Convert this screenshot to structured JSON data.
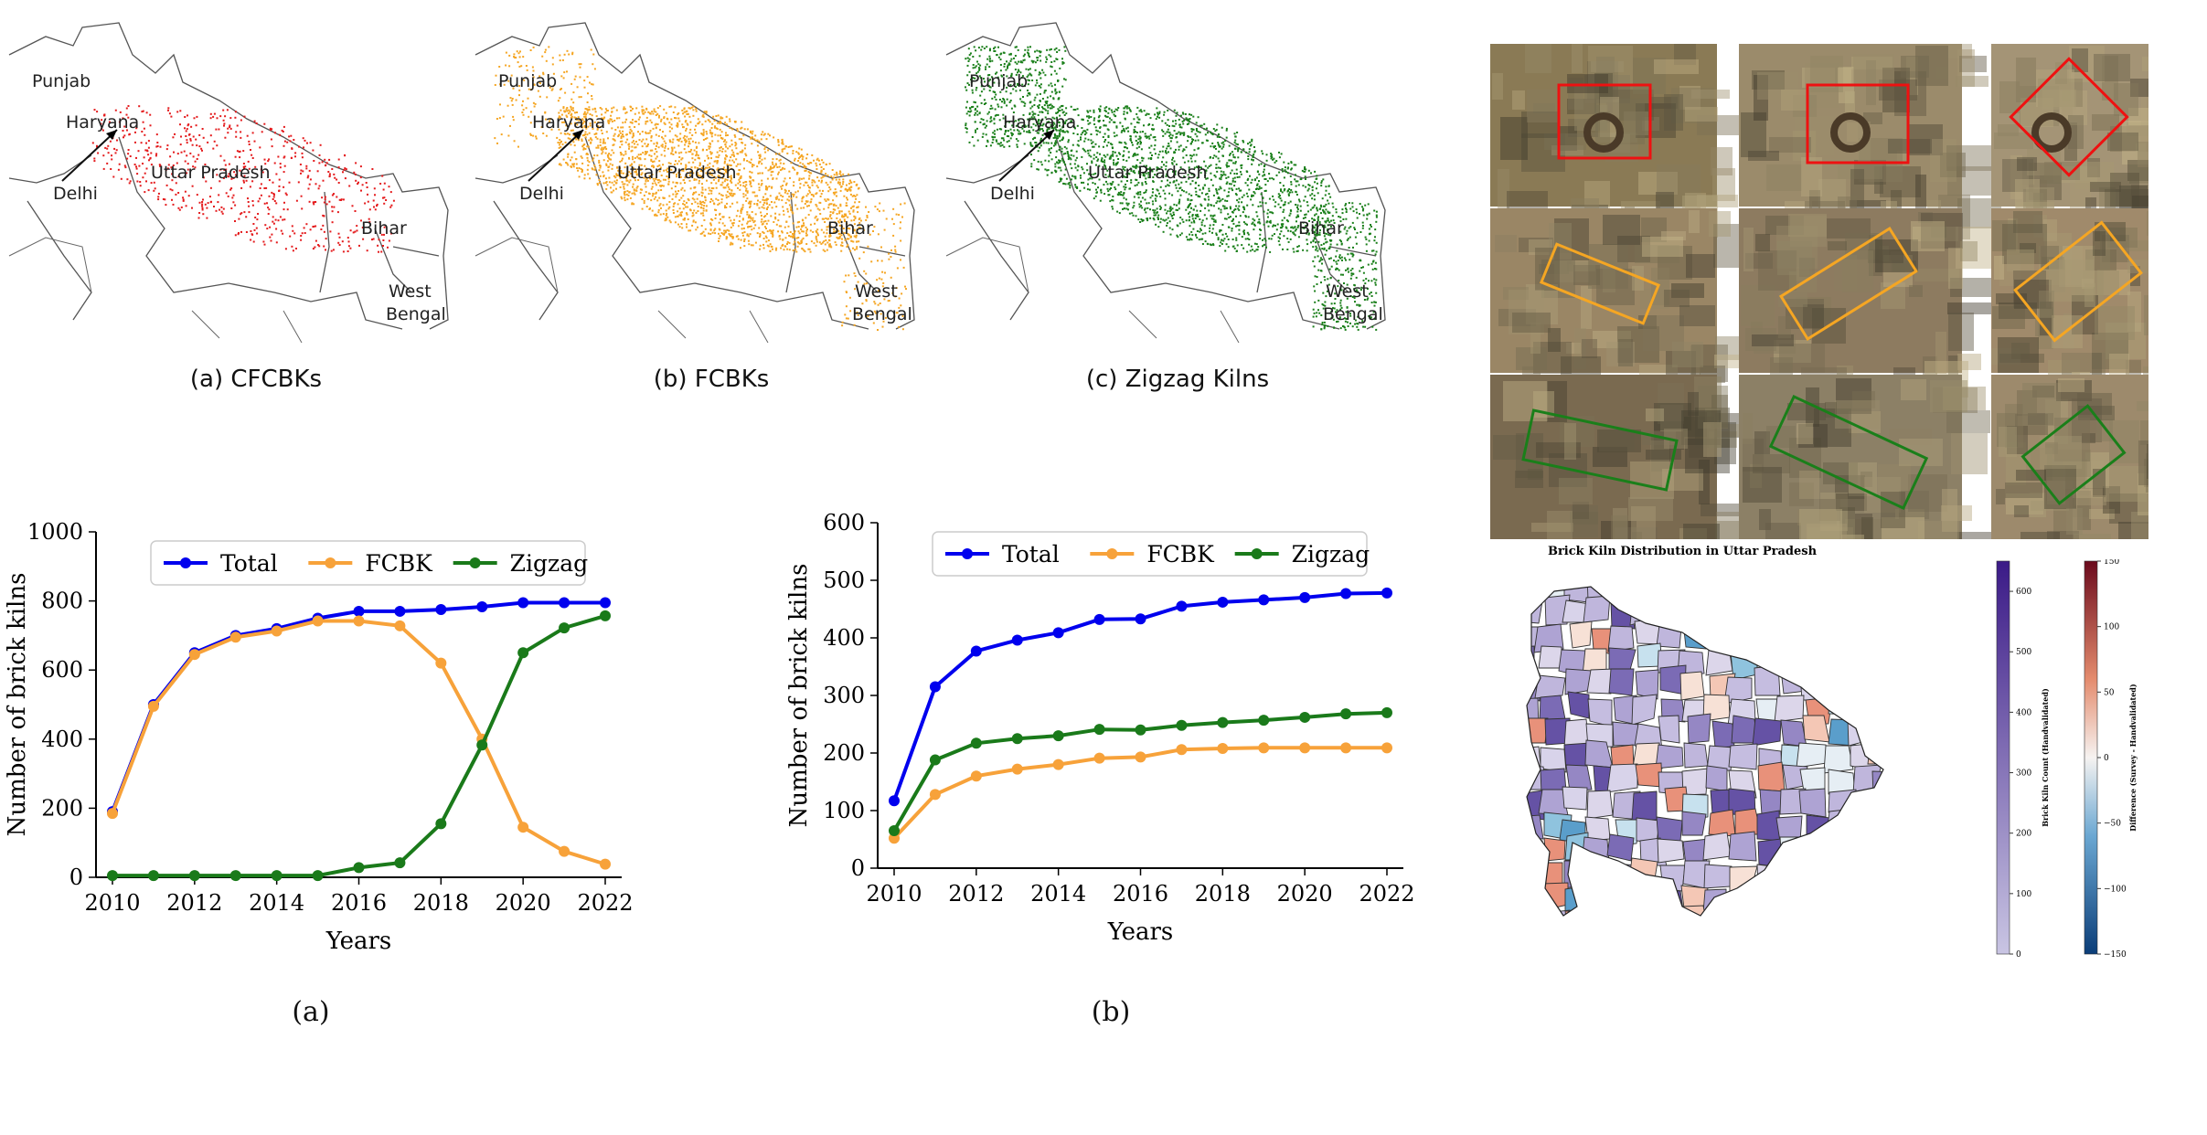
{
  "maps": [
    {
      "caption": "(a) CFCBKs",
      "color": "#e41a1c",
      "labels": [
        "Punjab",
        "Haryana",
        "Delhi",
        "Uttar Pradesh",
        "Bihar",
        "West",
        "Bengal"
      ]
    },
    {
      "caption": "(b) FCBKs",
      "color": "#f5a623",
      "labels": [
        "Punjab",
        "Haryana",
        "Delhi",
        "Uttar Pradesh",
        "Bihar",
        "West",
        "Bengal"
      ]
    },
    {
      "caption": "(c) Zigzag Kilns",
      "color": "#1a7f1a",
      "labels": [
        "Punjab",
        "Haryana",
        "Delhi",
        "Uttar Pradesh",
        "Bihar",
        "West",
        "Bengal"
      ]
    }
  ],
  "panel_captions": [
    "(a)",
    "(b)"
  ],
  "series_colors": {
    "Total": "#0000ee",
    "FCBK": "#f7a23a",
    "Zigzag": "#1a7a1a"
  },
  "chart_data": [
    {
      "type": "line",
      "title": "",
      "xlabel": "Years",
      "ylabel": "Number of brick kilns",
      "x": [
        2010,
        2011,
        2012,
        2013,
        2014,
        2015,
        2016,
        2017,
        2018,
        2019,
        2020,
        2021,
        2022
      ],
      "xticks": [
        2010,
        2012,
        2014,
        2016,
        2018,
        2020,
        2022
      ],
      "ylim": [
        0,
        1000
      ],
      "yticks": [
        0,
        200,
        400,
        600,
        800,
        1000
      ],
      "legend": "top",
      "series": [
        {
          "name": "Total",
          "values": [
            190,
            500,
            650,
            700,
            720,
            750,
            770,
            770,
            775,
            783,
            795,
            795,
            795
          ]
        },
        {
          "name": "FCBK",
          "values": [
            185,
            495,
            645,
            695,
            713,
            742,
            742,
            728,
            620,
            400,
            145,
            75,
            38
          ]
        },
        {
          "name": "Zigzag",
          "values": [
            5,
            5,
            5,
            5,
            5,
            5,
            28,
            42,
            155,
            383,
            650,
            722,
            757
          ]
        }
      ]
    },
    {
      "type": "line",
      "title": "",
      "xlabel": "Years",
      "ylabel": "Number of brick kilns",
      "x": [
        2010,
        2011,
        2012,
        2013,
        2014,
        2015,
        2016,
        2017,
        2018,
        2019,
        2020,
        2021,
        2022
      ],
      "xticks": [
        2010,
        2012,
        2014,
        2016,
        2018,
        2020,
        2022
      ],
      "ylim": [
        0,
        600
      ],
      "yticks": [
        0,
        100,
        200,
        300,
        400,
        500,
        600
      ],
      "legend": "top",
      "series": [
        {
          "name": "Total",
          "values": [
            117,
            315,
            377,
            396,
            409,
            432,
            433,
            455,
            462,
            466,
            470,
            477,
            478
          ]
        },
        {
          "name": "FCBK",
          "values": [
            52,
            128,
            160,
            172,
            180,
            191,
            193,
            206,
            208,
            209,
            209,
            209,
            209
          ]
        },
        {
          "name": "Zigzag",
          "values": [
            65,
            188,
            217,
            225,
            230,
            241,
            240,
            248,
            253,
            257,
            262,
            268,
            270
          ]
        }
      ]
    }
  ],
  "choropleth": {
    "title": "Brick Kiln Distribution in Uttar Pradesh",
    "count_label": "Brick Kiln Count (Handvalidated)",
    "count_ticks": [
      "0",
      "100",
      "200",
      "300",
      "400",
      "500",
      "600"
    ],
    "diff_label": "Difference (Survey - Handvalidated)",
    "diff_ticks": [
      "150",
      "100",
      "50",
      "0",
      "−50",
      "−100",
      "−150"
    ]
  }
}
